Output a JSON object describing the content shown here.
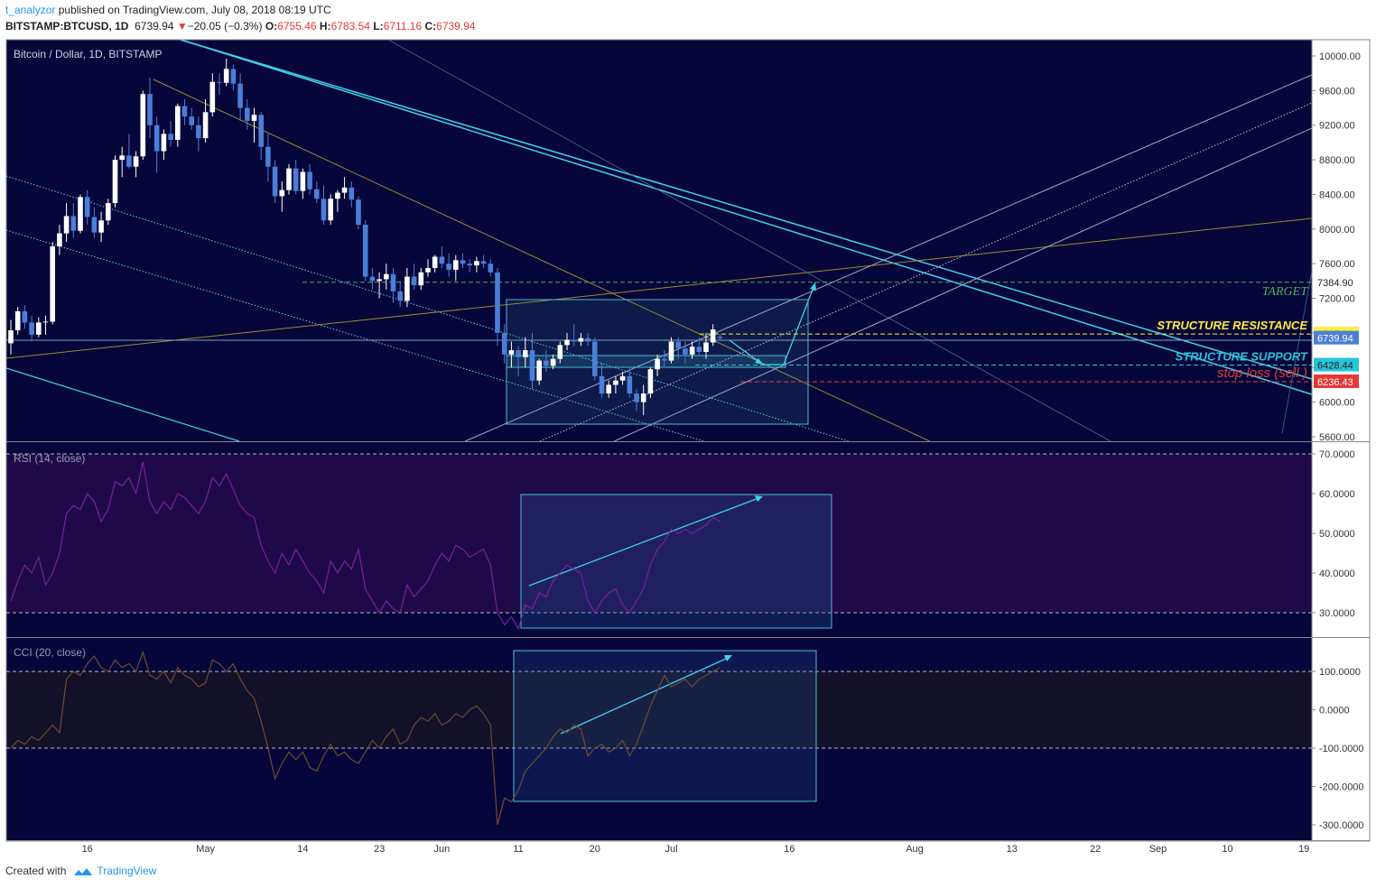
{
  "header": {
    "author": "t_analyzor",
    "published": "published on TradingView.com, July 08, 2018 08:19 UTC",
    "symbol": "BITSTAMP:BTCUSD, 1D",
    "last": "6739.94",
    "change_arrow": "▼",
    "change": "−20.05 (−0.3%)",
    "o_label": "O:",
    "o": "6755.46",
    "h_label": "H:",
    "h": "6783.54",
    "l_label": "L:",
    "l": "6711.16",
    "c_label": "C:",
    "c": "6739.94"
  },
  "footer": {
    "created_with": "Created with",
    "brand": "TradingView"
  },
  "colors": {
    "panel_bg": "#06063a",
    "up_candle": "#ffffff",
    "down_candle": "#4a7fd8",
    "channel_cyan": "#3fd2ea",
    "target_green": "#4caf50",
    "resistance_yellow": "#ffeb3b",
    "support_cyan": "#26c6da",
    "stoploss_red": "#e53935",
    "rsi_line": "#7b1fa2",
    "cci_line": "#6d4c2f"
  },
  "chart_data": [
    {
      "type": "candlestick",
      "title": "Bitcoin / Dollar, 1D, BITSTAMP",
      "ylim": [
        5600,
        10200
      ],
      "y_ticks": [
        "10000.00",
        "9600.00",
        "9200.00",
        "8800.00",
        "8400.00",
        "8000.00",
        "7600.00",
        "7200.00",
        "6800.00",
        "6400.00",
        "6000.00",
        "5600.00"
      ],
      "x_ticks": [
        "16",
        "May",
        "14",
        "23",
        "Jun",
        "11",
        "20",
        "Jul",
        "16",
        "Aug",
        "13",
        "22",
        "Sep",
        "10",
        "19"
      ],
      "last_price": 6739.94,
      "levels": [
        {
          "label": "TARGET",
          "price": 7384.9,
          "price_text": "7384.90",
          "color": "#4caf50"
        },
        {
          "label": "STRUCTURE RESISTANCE",
          "price": 6787.31,
          "price_text": "6787.31",
          "color": "#ffeb3b"
        },
        {
          "label": "STRUCTURE SUPPORT",
          "price": 6428.44,
          "price_text": "6428.44",
          "color": "#26c6da"
        },
        {
          "label": "stop loss (sell )",
          "price": 6236.43,
          "price_text": "6236.43",
          "color": "#e53935"
        }
      ],
      "last_price_text": "6739.94",
      "candles": [
        [
          6680,
          6950,
          6550,
          6830
        ],
        [
          6830,
          7100,
          6780,
          7050
        ],
        [
          7050,
          7120,
          6850,
          6920
        ],
        [
          6920,
          7000,
          6700,
          6780
        ],
        [
          6780,
          6980,
          6750,
          6920
        ],
        [
          6920,
          7000,
          6780,
          6930
        ],
        [
          6930,
          7850,
          6900,
          7800
        ],
        [
          7800,
          8050,
          7700,
          7950
        ],
        [
          7950,
          8300,
          7850,
          8150
        ],
        [
          8150,
          8300,
          7900,
          7980
        ],
        [
          7980,
          8400,
          7950,
          8370
        ],
        [
          8370,
          8450,
          8050,
          8140
        ],
        [
          8140,
          8250,
          7900,
          7960
        ],
        [
          7960,
          8200,
          7850,
          8100
        ],
        [
          8100,
          8350,
          8050,
          8300
        ],
        [
          8300,
          8850,
          8250,
          8800
        ],
        [
          8800,
          8950,
          8600,
          8850
        ],
        [
          8850,
          9100,
          8700,
          8720
        ],
        [
          8720,
          8900,
          8600,
          8840
        ],
        [
          8840,
          9600,
          8800,
          9560
        ],
        [
          9560,
          9750,
          9050,
          9200
        ],
        [
          9200,
          9300,
          8650,
          8900
        ],
        [
          8900,
          9150,
          8800,
          9100
        ],
        [
          9100,
          9250,
          8950,
          9030
        ],
        [
          9030,
          9450,
          8950,
          9420
        ],
        [
          9420,
          9500,
          9200,
          9300
        ],
        [
          9300,
          9400,
          9150,
          9200
        ],
        [
          9200,
          9300,
          8900,
          9050
        ],
        [
          9050,
          9500,
          9000,
          9350
        ],
        [
          9350,
          9800,
          9300,
          9700
        ],
        [
          9700,
          9800,
          9550,
          9690
        ],
        [
          9690,
          9970,
          9650,
          9850
        ],
        [
          9850,
          9900,
          9600,
          9680
        ],
        [
          9680,
          9800,
          9250,
          9400
        ],
        [
          9400,
          9500,
          9150,
          9250
        ],
        [
          9250,
          9400,
          9000,
          9320
        ],
        [
          9320,
          9350,
          8800,
          8950
        ],
        [
          8950,
          9100,
          8550,
          8720
        ],
        [
          8720,
          8800,
          8300,
          8380
        ],
        [
          8380,
          8550,
          8200,
          8450
        ],
        [
          8450,
          8750,
          8400,
          8700
        ],
        [
          8700,
          8800,
          8400,
          8440
        ],
        [
          8440,
          8700,
          8350,
          8660
        ],
        [
          8660,
          8750,
          8400,
          8460
        ],
        [
          8460,
          8550,
          8300,
          8350
        ],
        [
          8350,
          8500,
          8050,
          8100
        ],
        [
          8100,
          8400,
          8050,
          8350
        ],
        [
          8350,
          8450,
          8200,
          8420
        ],
        [
          8420,
          8600,
          8350,
          8480
        ],
        [
          8480,
          8550,
          8250,
          8340
        ],
        [
          8340,
          8380,
          8000,
          8050
        ],
        [
          8050,
          8100,
          7400,
          7450
        ],
        [
          7450,
          7550,
          7300,
          7400
        ],
        [
          7400,
          7500,
          7200,
          7420
        ],
        [
          7420,
          7600,
          7300,
          7480
        ],
        [
          7480,
          7550,
          7150,
          7280
        ],
        [
          7280,
          7400,
          7100,
          7170
        ],
        [
          7170,
          7550,
          7100,
          7450
        ],
        [
          7450,
          7600,
          7300,
          7350
        ],
        [
          7350,
          7550,
          7300,
          7500
        ],
        [
          7500,
          7650,
          7450,
          7550
        ],
        [
          7550,
          7700,
          7500,
          7680
        ],
        [
          7680,
          7800,
          7550,
          7600
        ],
        [
          7600,
          7720,
          7450,
          7530
        ],
        [
          7530,
          7700,
          7400,
          7640
        ],
        [
          7640,
          7720,
          7550,
          7600
        ],
        [
          7600,
          7650,
          7500,
          7580
        ],
        [
          7580,
          7680,
          7500,
          7630
        ],
        [
          7630,
          7700,
          7550,
          7600
        ],
        [
          7600,
          7650,
          7450,
          7500
        ],
        [
          7500,
          7550,
          6650,
          6800
        ],
        [
          6800,
          6900,
          6450,
          6550
        ],
        [
          6550,
          6700,
          6400,
          6600
        ],
        [
          6600,
          6650,
          6300,
          6520
        ],
        [
          6520,
          6750,
          6400,
          6600
        ],
        [
          6600,
          6800,
          6150,
          6250
        ],
        [
          6250,
          6500,
          6200,
          6480
        ],
        [
          6480,
          6600,
          6350,
          6420
        ],
        [
          6420,
          6550,
          6380,
          6500
        ],
        [
          6500,
          6700,
          6450,
          6660
        ],
        [
          6660,
          6800,
          6600,
          6720
        ],
        [
          6720,
          6900,
          6650,
          6700
        ],
        [
          6700,
          6800,
          6650,
          6740
        ],
        [
          6740,
          6800,
          6650,
          6700
        ],
        [
          6700,
          6750,
          6250,
          6300
        ],
        [
          6300,
          6450,
          6050,
          6100
        ],
        [
          6100,
          6250,
          6050,
          6200
        ],
        [
          6200,
          6300,
          6100,
          6250
        ],
        [
          6250,
          6350,
          6200,
          6300
        ],
        [
          6300,
          6400,
          6050,
          6100
        ],
        [
          6100,
          6150,
          5900,
          6000
        ],
        [
          6000,
          6200,
          5850,
          6100
        ],
        [
          6100,
          6400,
          6050,
          6380
        ],
        [
          6380,
          6550,
          6300,
          6500
        ],
        [
          6500,
          6600,
          6400,
          6480
        ],
        [
          6480,
          6750,
          6450,
          6700
        ],
        [
          6700,
          6750,
          6500,
          6620
        ],
        [
          6620,
          6700,
          6450,
          6550
        ],
        [
          6550,
          6700,
          6500,
          6640
        ],
        [
          6640,
          6750,
          6550,
          6580
        ],
        [
          6580,
          6800,
          6500,
          6690
        ],
        [
          6690,
          6900,
          6650,
          6840
        ],
        [
          6755,
          6784,
          6711,
          6740
        ]
      ]
    },
    {
      "type": "line",
      "title": "RSI (14, close)",
      "ylim": [
        25,
        72
      ],
      "y_ticks": [
        "70.0000",
        "60.0000",
        "50.0000",
        "40.0000",
        "30.0000"
      ],
      "bands": [
        30,
        70
      ],
      "values": [
        33,
        38,
        42,
        40,
        44,
        37,
        40,
        45,
        55,
        57,
        56,
        60,
        58,
        53,
        56,
        63,
        62,
        64,
        60,
        68,
        58,
        55,
        58,
        56,
        60,
        59,
        57,
        55,
        58,
        64,
        62,
        65,
        61,
        57,
        55,
        54,
        47,
        43,
        40,
        45,
        42,
        46,
        43,
        40,
        38,
        35,
        43,
        40,
        43,
        41,
        46,
        36,
        33,
        30,
        33,
        31,
        30,
        37,
        34,
        36,
        38,
        42,
        45,
        43,
        47,
        46,
        44,
        45,
        46,
        42,
        30,
        27,
        29,
        26,
        32,
        31,
        35,
        34,
        38,
        40,
        42,
        41,
        40,
        33,
        30,
        33,
        35,
        36,
        32,
        30,
        33,
        36,
        42,
        46,
        48,
        51,
        50,
        51,
        50,
        51,
        52,
        54,
        53
      ]
    },
    {
      "type": "line",
      "title": "CCI (20, close)",
      "ylim": [
        -320,
        160
      ],
      "y_ticks": [
        "100.0000",
        "0.0000",
        "-100.0000",
        "-200.0000",
        "-300.0000"
      ],
      "bands": [
        100,
        -100
      ],
      "values": [
        -100,
        -80,
        -90,
        -70,
        -80,
        -60,
        -40,
        -60,
        80,
        100,
        90,
        120,
        140,
        110,
        100,
        130,
        110,
        120,
        100,
        150,
        90,
        80,
        100,
        70,
        110,
        90,
        80,
        60,
        70,
        130,
        120,
        100,
        120,
        80,
        50,
        30,
        -30,
        -100,
        -180,
        -140,
        -110,
        -130,
        -110,
        -150,
        -160,
        -120,
        -90,
        -120,
        -110,
        -130,
        -140,
        -110,
        -80,
        -100,
        -70,
        -50,
        -90,
        -80,
        -40,
        -20,
        -30,
        -10,
        -40,
        -30,
        -10,
        -20,
        0,
        10,
        -10,
        -40,
        -300,
        -230,
        -240,
        -210,
        -160,
        -140,
        -120,
        -100,
        -70,
        -50,
        -60,
        -40,
        -50,
        -120,
        -100,
        -90,
        -110,
        -100,
        -80,
        -120,
        -90,
        -40,
        10,
        50,
        90,
        60,
        70,
        80,
        60,
        80,
        90,
        100,
        110
      ]
    }
  ]
}
